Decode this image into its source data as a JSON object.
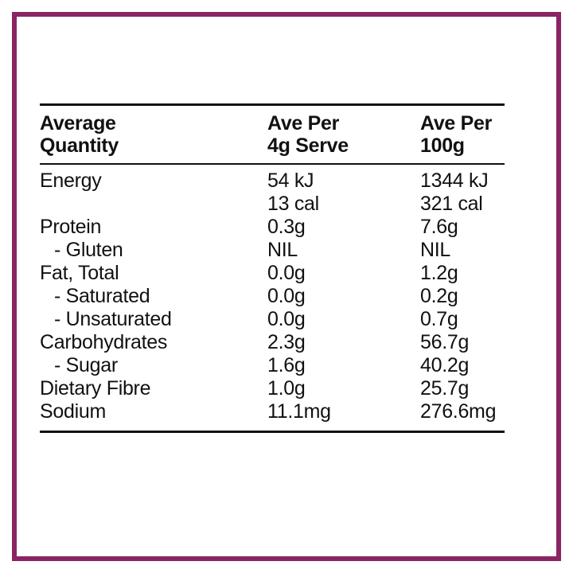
{
  "panel": {
    "header": {
      "col1_line1": "Average",
      "col1_line2": "Quantity",
      "col2_line1": "Ave Per",
      "col2_line2": "4g Serve",
      "col3_line1": "Ave Per",
      "col3_line2": "100g"
    },
    "rows": [
      {
        "label": "Energy",
        "serve": "54 kJ",
        "per100": "1344 kJ"
      },
      {
        "label": "",
        "serve": "13 cal",
        "per100": "321 cal"
      },
      {
        "label": "Protein",
        "serve": "0.3g",
        "per100": "7.6g"
      },
      {
        "label": "- Gluten",
        "serve": "NIL",
        "per100": "NIL"
      },
      {
        "label": "Fat, Total",
        "serve": "0.0g",
        "per100": "1.2g"
      },
      {
        "label": "- Saturated",
        "serve": "0.0g",
        "per100": "0.2g"
      },
      {
        "label": "- Unsaturated",
        "serve": "0.0g",
        "per100": "0.7g"
      },
      {
        "label": "Carbohydrates",
        "serve": "2.3g",
        "per100": "56.7g"
      },
      {
        "label": "- Sugar",
        "serve": "1.6g",
        "per100": "40.2g"
      },
      {
        "label": "Dietary Fibre",
        "serve": "1.0g",
        "per100": "25.7g"
      },
      {
        "label": "Sodium",
        "serve": "11.1mg",
        "per100": "276.6mg"
      }
    ]
  },
  "colors": {
    "border": "#8a2464",
    "text": "#111111",
    "background": "#ffffff"
  }
}
